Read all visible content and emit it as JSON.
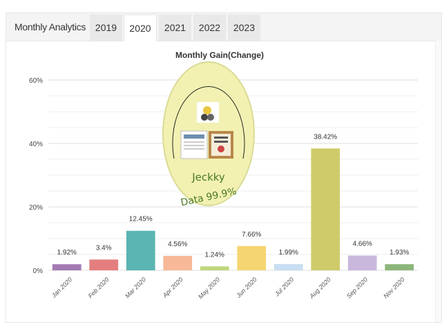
{
  "header": {
    "title": "Monthly Analytics",
    "tabs": [
      {
        "label": "2019",
        "active": false
      },
      {
        "label": "2020",
        "active": true
      },
      {
        "label": "2021",
        "active": false
      },
      {
        "label": "2022",
        "active": false
      },
      {
        "label": "2023",
        "active": false
      }
    ]
  },
  "watermark": {
    "text1": "Jeckky",
    "text2": "Data 99.9%",
    "fill": "#f2f1b2",
    "ring": "#dadb95",
    "text_color": "#4a7a22"
  },
  "chart_data": {
    "type": "bar",
    "title": "Monthly Gain(Change)",
    "categories": [
      "Jan 2020",
      "Feb 2020",
      "Mar 2020",
      "Apr 2020",
      "May 2020",
      "Jun 2020",
      "Jul 2020",
      "Aug 2020",
      "Sep 2020",
      "Nov 2020"
    ],
    "values": [
      1.92,
      3.4,
      12.45,
      4.56,
      1.24,
      7.66,
      1.99,
      38.42,
      4.66,
      1.93
    ],
    "labels": [
      "1.92%",
      "3.4%",
      "12.45%",
      "4.56%",
      "1.24%",
      "7.66%",
      "1.99%",
      "38.42%",
      "4.66%",
      "1.93%"
    ],
    "colors": [
      "#a47ab3",
      "#e47e7e",
      "#5bb5b3",
      "#f7b998",
      "#c0d67d",
      "#f5d572",
      "#c8def2",
      "#cfcb6a",
      "#c9b8dc",
      "#8cb67a"
    ],
    "yticks": [
      "0%",
      "20%",
      "40%",
      "60%"
    ],
    "ylim": [
      0,
      60
    ],
    "grid": true
  }
}
